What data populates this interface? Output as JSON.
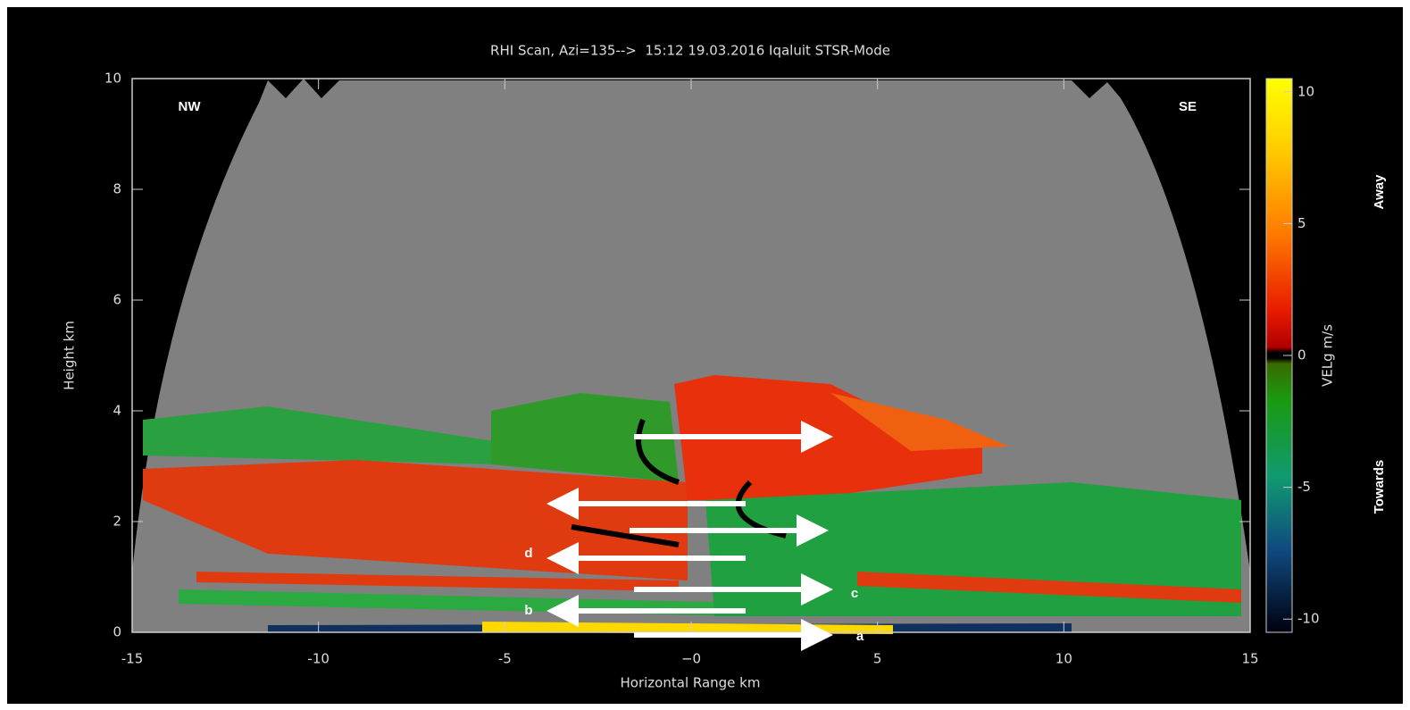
{
  "chart_data": {
    "type": "rhi",
    "title": "RHI Scan, Azi=135-->  15:12 19.03.2016 Iqaluit STSR-Mode",
    "x_label": "Horizontal Range km",
    "y_label": "Height km",
    "xlim": [
      -15,
      15
    ],
    "xticks": [
      -15,
      -10,
      -5,
      {
        "value": 0,
        "label": "−0"
      },
      5,
      10,
      15
    ],
    "ylim": [
      0,
      10
    ],
    "yticks": [
      0,
      2,
      4,
      6,
      8,
      10
    ],
    "colorbar": {
      "label": "VELg m/s",
      "lim": [
        -10.5,
        10.5
      ],
      "ticks": [
        10,
        5,
        0,
        -5,
        -10
      ]
    },
    "annotations": [
      "NW",
      "SE",
      "Away",
      "Towards",
      "a",
      "b",
      "c",
      "d"
    ],
    "grid": false
  }
}
